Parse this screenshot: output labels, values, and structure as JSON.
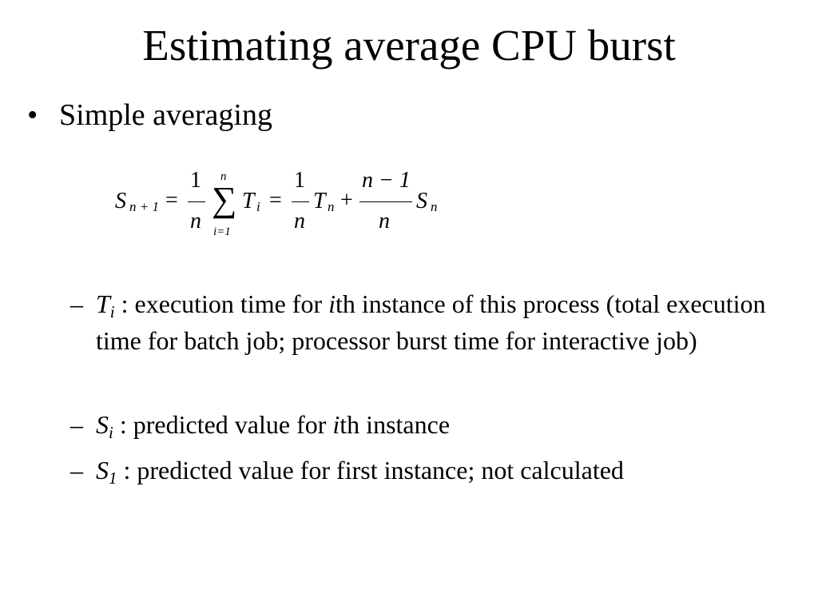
{
  "title": "Estimating average CPU burst",
  "bullet": {
    "marker": "•",
    "text": "Simple averaging"
  },
  "formula": {
    "S": "S",
    "sub_n_plus_1": "n + 1",
    "eq1": "=",
    "frac1_num": "1",
    "frac1_den": "n",
    "sum_upper": "n",
    "sum_symbol": "∑",
    "sum_lower": "i=1",
    "T": "T",
    "sub_i": "i",
    "eq2": "=",
    "frac2_num": "1",
    "frac2_den": "n",
    "T2": "T",
    "sub_n": "n",
    "plus": "+",
    "frac3_num": "n − 1",
    "frac3_den": "n",
    "S2": "S",
    "sub_n2": "n"
  },
  "sub_bullets": [
    {
      "dash": "–",
      "symbol": "T",
      "symbol_sub": "i",
      "text_pre": " : execution time for ",
      "text_italic": "i",
      "text_post": "th instance of this process (total execution time for batch job; processor burst time for interactive job)"
    },
    {
      "dash": "–",
      "symbol": "S",
      "symbol_sub": "i",
      "text_pre": " : predicted value for ",
      "text_italic": "i",
      "text_post": "th instance"
    },
    {
      "dash": "–",
      "symbol": "S",
      "symbol_sub": "1",
      "text_pre": " : predicted value for first instance; not calculated",
      "text_italic": "",
      "text_post": ""
    }
  ]
}
